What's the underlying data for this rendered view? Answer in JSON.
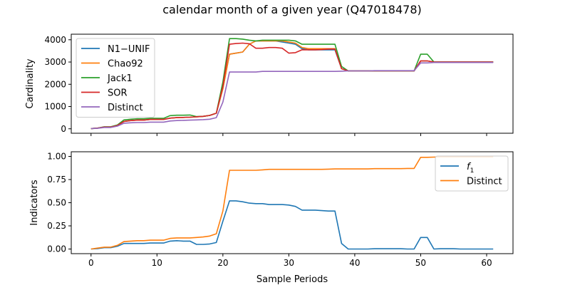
{
  "figure": {
    "title": "calendar month of a given year (Q47018478)",
    "xlabel": "Sample Periods"
  },
  "chart_data": [
    {
      "type": "line",
      "ylabel": "Cardinality",
      "xlim": [
        -3,
        64
      ],
      "ylim": [
        -200,
        4250
      ],
      "xticks": [
        0,
        10,
        20,
        30,
        40,
        50,
        60
      ],
      "yticks": [
        0,
        1000,
        2000,
        3000,
        4000
      ],
      "ytick_labels": [
        "0",
        "1000",
        "2000",
        "3000",
        "4000"
      ],
      "show_xtick_labels": false,
      "grid": false,
      "legend_position": "top-left",
      "x": [
        0,
        1,
        2,
        3,
        4,
        5,
        6,
        7,
        8,
        9,
        10,
        11,
        12,
        13,
        14,
        15,
        16,
        17,
        18,
        19,
        20,
        21,
        22,
        23,
        24,
        25,
        26,
        27,
        28,
        29,
        30,
        31,
        32,
        33,
        34,
        35,
        36,
        37,
        38,
        39,
        40,
        41,
        42,
        43,
        44,
        45,
        46,
        47,
        48,
        49,
        50,
        51,
        52,
        53,
        54,
        55,
        56,
        57,
        58,
        59,
        60,
        61
      ],
      "series": [
        {
          "name": "N1−UNIF",
          "color": "#1f77b4",
          "values": [
            10,
            30,
            80,
            80,
            150,
            330,
            370,
            390,
            390,
            420,
            420,
            420,
            480,
            500,
            510,
            520,
            540,
            560,
            600,
            700,
            1800,
            3350,
            3400,
            3450,
            3800,
            3950,
            3950,
            3950,
            3950,
            3900,
            3850,
            3800,
            3600,
            3550,
            3550,
            3550,
            3550,
            3550,
            2700,
            2600,
            2600,
            2600,
            2600,
            2600,
            2600,
            2600,
            2600,
            2600,
            2600,
            2600,
            3050,
            3050,
            3000,
            3000,
            3000,
            3000,
            3000,
            3000,
            3000,
            3000,
            3000,
            3000
          ]
        },
        {
          "name": "Chao92",
          "color": "#ff7f0e",
          "values": [
            10,
            30,
            80,
            80,
            150,
            330,
            370,
            390,
            390,
            420,
            420,
            420,
            480,
            500,
            510,
            520,
            540,
            560,
            600,
            700,
            1800,
            3350,
            3400,
            3450,
            3800,
            3950,
            3950,
            3950,
            3950,
            3950,
            3900,
            3850,
            3650,
            3600,
            3600,
            3600,
            3600,
            3600,
            2700,
            2600,
            2600,
            2600,
            2600,
            2600,
            2600,
            2600,
            2600,
            2600,
            2600,
            2600,
            3050,
            3050,
            3000,
            3000,
            3000,
            3000,
            3000,
            3000,
            3000,
            3000,
            3000,
            3000
          ]
        },
        {
          "name": "Jack1",
          "color": "#2ca02c",
          "values": [
            10,
            30,
            90,
            90,
            170,
            400,
            430,
            450,
            450,
            470,
            470,
            470,
            590,
            610,
            610,
            620,
            550,
            560,
            600,
            700,
            2100,
            4050,
            4050,
            4030,
            3980,
            3950,
            3980,
            3980,
            3980,
            3980,
            3980,
            3950,
            3800,
            3800,
            3800,
            3800,
            3800,
            3800,
            2800,
            2600,
            2600,
            2600,
            2600,
            2600,
            2600,
            2600,
            2600,
            2600,
            2600,
            2600,
            3350,
            3350,
            3000,
            3000,
            3000,
            3000,
            3000,
            3000,
            3000,
            3000,
            3000,
            3000
          ]
        },
        {
          "name": "SOR",
          "color": "#d62728",
          "values": [
            10,
            30,
            80,
            80,
            150,
            330,
            370,
            390,
            390,
            420,
            420,
            420,
            480,
            500,
            510,
            520,
            540,
            560,
            600,
            700,
            1900,
            3800,
            3830,
            3850,
            3820,
            3620,
            3620,
            3650,
            3650,
            3620,
            3400,
            3420,
            3550,
            3550,
            3550,
            3560,
            3580,
            3580,
            2700,
            2600,
            2600,
            2600,
            2600,
            2600,
            2600,
            2600,
            2600,
            2600,
            2600,
            2600,
            3050,
            3050,
            3000,
            3000,
            3000,
            3000,
            3000,
            3000,
            3000,
            3000,
            3000,
            3000
          ]
        },
        {
          "name": "Distinct",
          "color": "#9467bd",
          "values": [
            10,
            20,
            60,
            60,
            120,
            250,
            270,
            280,
            280,
            300,
            300,
            300,
            350,
            370,
            380,
            390,
            400,
            410,
            430,
            500,
            1200,
            2550,
            2550,
            2550,
            2550,
            2550,
            2580,
            2580,
            2580,
            2580,
            2580,
            2580,
            2580,
            2580,
            2580,
            2580,
            2580,
            2580,
            2590,
            2600,
            2600,
            2600,
            2600,
            2610,
            2610,
            2610,
            2610,
            2610,
            2610,
            2610,
            2960,
            2960,
            2980,
            2980,
            2980,
            2980,
            2980,
            2980,
            2980,
            2980,
            2980,
            2980
          ]
        }
      ]
    },
    {
      "type": "line",
      "ylabel": "Indicators",
      "xlabel": "Sample Periods",
      "xlim": [
        -3,
        64
      ],
      "ylim": [
        -0.05,
        1.05
      ],
      "xticks": [
        0,
        10,
        20,
        30,
        40,
        50,
        60
      ],
      "xtick_labels": [
        "0",
        "10",
        "20",
        "30",
        "40",
        "50",
        "60"
      ],
      "yticks": [
        0,
        0.25,
        0.5,
        0.75,
        1.0
      ],
      "ytick_labels": [
        "0.00",
        "0.25",
        "0.50",
        "0.75",
        "1.00"
      ],
      "grid": false,
      "legend_position": "top-right",
      "x": [
        0,
        1,
        2,
        3,
        4,
        5,
        6,
        7,
        8,
        9,
        10,
        11,
        12,
        13,
        14,
        15,
        16,
        17,
        18,
        19,
        20,
        21,
        22,
        23,
        24,
        25,
        26,
        27,
        28,
        29,
        30,
        31,
        32,
        33,
        34,
        35,
        36,
        37,
        38,
        39,
        40,
        41,
        42,
        43,
        44,
        45,
        46,
        47,
        48,
        49,
        50,
        51,
        52,
        53,
        54,
        55,
        56,
        57,
        58,
        59,
        60,
        61
      ],
      "series": [
        {
          "name": "f1",
          "name_parts": [
            "f",
            "1"
          ],
          "color": "#1f77b4",
          "values": [
            0.0,
            0.005,
            0.015,
            0.015,
            0.03,
            0.06,
            0.06,
            0.06,
            0.06,
            0.065,
            0.065,
            0.065,
            0.085,
            0.09,
            0.085,
            0.085,
            0.05,
            0.05,
            0.055,
            0.07,
            0.3,
            0.52,
            0.52,
            0.51,
            0.495,
            0.49,
            0.49,
            0.48,
            0.48,
            0.48,
            0.475,
            0.46,
            0.42,
            0.42,
            0.42,
            0.415,
            0.41,
            0.41,
            0.06,
            0.0,
            0.0,
            0.0,
            0.0,
            0.003,
            0.003,
            0.003,
            0.003,
            0.003,
            0.0,
            0.0,
            0.125,
            0.125,
            0.0,
            0.003,
            0.003,
            0.003,
            0.0,
            0.0,
            0.0,
            0.0,
            0.0,
            0.0
          ]
        },
        {
          "name": "Distinct",
          "color": "#ff7f0e",
          "values": [
            0.0,
            0.01,
            0.02,
            0.02,
            0.04,
            0.08,
            0.085,
            0.09,
            0.09,
            0.095,
            0.095,
            0.095,
            0.115,
            0.12,
            0.12,
            0.12,
            0.125,
            0.13,
            0.14,
            0.165,
            0.41,
            0.85,
            0.85,
            0.85,
            0.85,
            0.85,
            0.855,
            0.86,
            0.86,
            0.86,
            0.86,
            0.86,
            0.86,
            0.86,
            0.86,
            0.86,
            0.862,
            0.865,
            0.865,
            0.865,
            0.865,
            0.865,
            0.865,
            0.868,
            0.868,
            0.868,
            0.868,
            0.868,
            0.87,
            0.87,
            0.99,
            0.99,
            0.992,
            0.995,
            0.995,
            0.995,
            0.995,
            0.995,
            0.995,
            0.995,
            0.995,
            0.995
          ]
        }
      ]
    }
  ]
}
